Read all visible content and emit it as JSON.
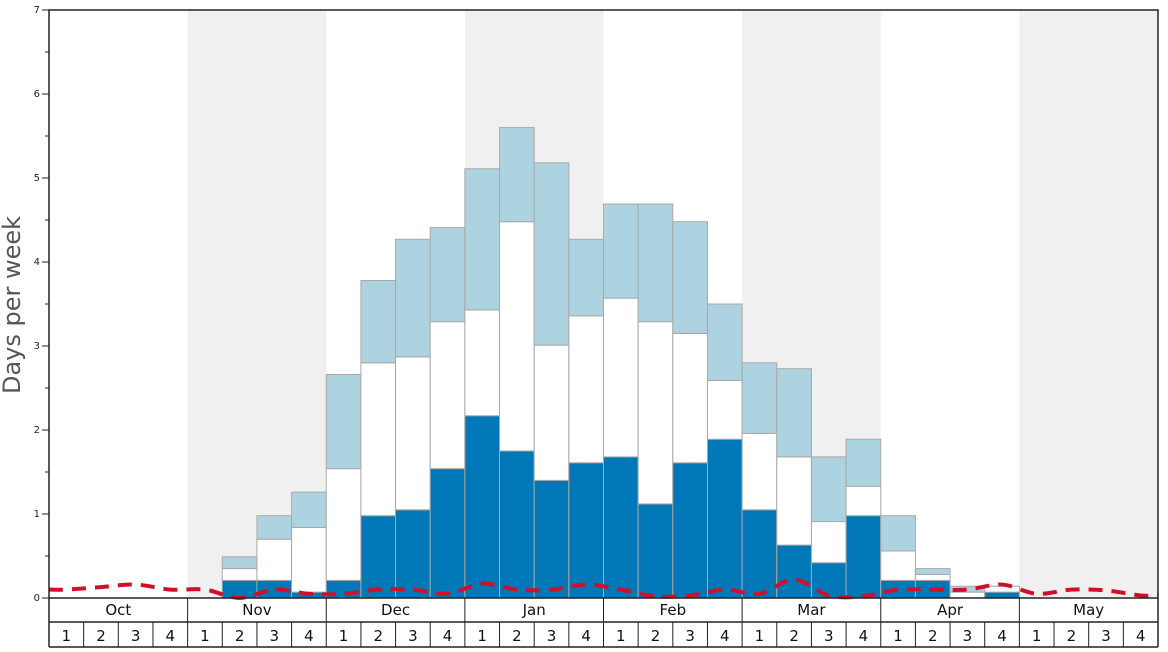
{
  "chart_data": {
    "type": "bar",
    "stacked": true,
    "ylabel": "Days per week",
    "ylim": [
      0,
      7
    ],
    "y_ticks": [
      "0",
      "1",
      "2",
      "3",
      "4",
      "5",
      "6",
      "7"
    ],
    "months": [
      "Oct",
      "Nov",
      "Dec",
      "Jan",
      "Feb",
      "Mar",
      "Apr",
      "May"
    ],
    "week_labels": [
      "1",
      "2",
      "3",
      "4"
    ],
    "x": [
      "Oct 1",
      "Oct 2",
      "Oct 3",
      "Oct 4",
      "Nov 1",
      "Nov 2",
      "Nov 3",
      "Nov 4",
      "Dec 1",
      "Dec 2",
      "Dec 3",
      "Dec 4",
      "Jan 1",
      "Jan 2",
      "Jan 3",
      "Jan 4",
      "Feb 1",
      "Feb 2",
      "Feb 3",
      "Feb 4",
      "Mar 1",
      "Mar 2",
      "Mar 3",
      "Mar 4",
      "Apr 1",
      "Apr 2",
      "Apr 3",
      "Apr 4",
      "May 1",
      "May 2",
      "May 3",
      "May 4"
    ],
    "series": [
      {
        "values": [
          0,
          0,
          0,
          0,
          0,
          0.21,
          0.21,
          0.07,
          0.21,
          0.98,
          1.05,
          1.54,
          2.17,
          1.75,
          1.4,
          1.61,
          1.68,
          1.12,
          1.61,
          1.89,
          1.05,
          0.63,
          0.42,
          0.98,
          0.21,
          0.21,
          0,
          0.07,
          0,
          0,
          0,
          0
        ],
        "color": "#0077b6"
      },
      {
        "values": [
          0,
          0,
          0,
          0,
          0,
          0.14,
          0.49,
          0.77,
          1.33,
          1.82,
          1.82,
          1.75,
          1.26,
          2.73,
          1.61,
          1.75,
          1.89,
          2.17,
          1.54,
          0.7,
          0.91,
          1.05,
          0.49,
          0.35,
          0.35,
          0.07,
          0.07,
          0.07,
          0,
          0,
          0,
          0
        ],
        "color": "#ffffff"
      },
      {
        "values": [
          0,
          0,
          0,
          0,
          0,
          0.14,
          0.28,
          0.42,
          1.12,
          0.98,
          1.4,
          1.12,
          1.68,
          1.12,
          2.17,
          0.91,
          1.12,
          1.4,
          1.33,
          0.91,
          0.84,
          1.05,
          0.77,
          0.56,
          0.42,
          0.07,
          0.07,
          0,
          0,
          0,
          0,
          0
        ],
        "color": "#aed3e0"
      }
    ],
    "line": {
      "values": [
        0.1,
        0.13,
        0.16,
        0.1,
        0.1,
        0.0,
        0.1,
        0.05,
        0.05,
        0.1,
        0.1,
        0.05,
        0.17,
        0.1,
        0.1,
        0.16,
        0.1,
        0.02,
        0.03,
        0.1,
        0.05,
        0.22,
        0.03,
        0.02,
        0.1,
        0.1,
        0.1,
        0.16,
        0.05,
        0.1,
        0.09,
        0.03
      ],
      "color": "#d0102a",
      "style": "dashed"
    },
    "background_bands": "alternating months (Nov, Jan, Mar, May shaded)",
    "band_color": "#f0f0f0",
    "grid": false,
    "legend": "none"
  }
}
